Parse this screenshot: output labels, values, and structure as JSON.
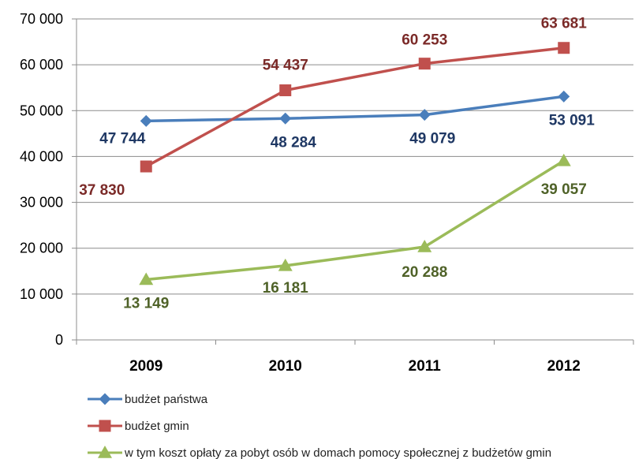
{
  "chart_data": {
    "type": "line",
    "categories": [
      "2009",
      "2010",
      "2011",
      "2012"
    ],
    "ylim": [
      0,
      70000
    ],
    "yticks": [
      0,
      10000,
      20000,
      30000,
      40000,
      50000,
      60000,
      70000
    ],
    "ytick_labels": [
      "0",
      "10 000",
      "20 000",
      "30 000",
      "40 000",
      "50 000",
      "60 000",
      "70 000"
    ],
    "grid": true,
    "legend_position": "bottom-left",
    "series": [
      {
        "name": "budżet państwa",
        "values": [
          47744,
          48284,
          49079,
          53091
        ],
        "labels": [
          "47 744",
          "48 284",
          "49 079",
          "53 091"
        ],
        "color": "#4a7ebb",
        "label_color": "#1f3864",
        "marker": "diamond"
      },
      {
        "name": "budżet gmin",
        "values": [
          37830,
          54437,
          60253,
          63681
        ],
        "labels": [
          "37 830",
          "54 437",
          "60 253",
          "63 681"
        ],
        "color": "#c0504d",
        "label_color": "#7b2a28",
        "marker": "square"
      },
      {
        "name": "w tym koszt opłaty za pobyt osób w domach pomocy społecznej z budżetów gmin",
        "values": [
          13149,
          16181,
          20288,
          39057
        ],
        "labels": [
          "13 149",
          "16 181",
          "20 288",
          "39 057"
        ],
        "color": "#9bbb59",
        "label_color": "#4f6228",
        "marker": "triangle"
      }
    ]
  }
}
